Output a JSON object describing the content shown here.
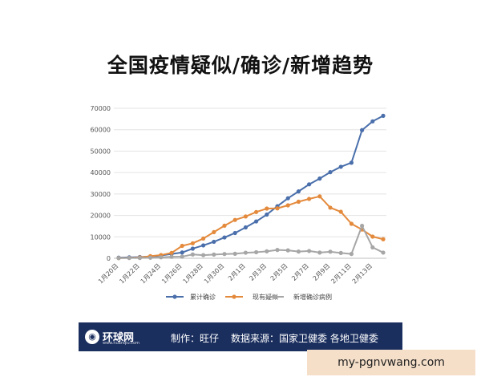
{
  "title": "全国疫情疑似/确诊/新增趋势",
  "footer": {
    "logo_text": "环球网",
    "logo_sub": "www.huanqiu.com",
    "maker": "制作：旺仔",
    "source": "数据来源：国家卫健委 各地卫健委"
  },
  "watermark": "my-pgnvwang.com",
  "chart_data": {
    "type": "line",
    "title": "",
    "xlabel": "",
    "ylabel": "",
    "ylim": [
      0,
      70000
    ],
    "yticks": [
      0,
      10000,
      20000,
      30000,
      40000,
      50000,
      60000,
      70000
    ],
    "grid": true,
    "legend": "bottom",
    "x": [
      "1月20日",
      "1月21日",
      "1月22日",
      "1月23日",
      "1月24日",
      "1月25日",
      "1月26日",
      "1月27日",
      "1月28日",
      "1月29日",
      "1月30日",
      "1月31日",
      "2月1日",
      "2月2日",
      "2月3日",
      "2月4日",
      "2月5日",
      "2月6日",
      "2月7日",
      "2月8日",
      "2月9日",
      "2月10日",
      "2月11日",
      "2月12日",
      "2月13日",
      "2月14日"
    ],
    "x_tick_labels": [
      "1月20日",
      "1月22日",
      "1月24日",
      "1月26日",
      "1月28日",
      "1月30日",
      "2月1日",
      "2月3日",
      "2月5日",
      "2月7日",
      "2月9日",
      "2月11日",
      "2月13日"
    ],
    "series": [
      {
        "name": "累计确诊",
        "color": "#4a6fab",
        "values": [
          300,
          440,
          570,
          830,
          1300,
          2000,
          2700,
          4500,
          6000,
          7700,
          9700,
          11800,
          14400,
          17200,
          20400,
          24300,
          28000,
          31200,
          34500,
          37200,
          40200,
          42700,
          44600,
          59800,
          63900,
          66500
        ]
      },
      {
        "name": "现有疑似",
        "color": "#e48a3c",
        "values": [
          100,
          200,
          390,
          1000,
          1500,
          2500,
          5800,
          7000,
          9200,
          12200,
          15200,
          17900,
          19500,
          21600,
          23200,
          23300,
          24700,
          26400,
          27700,
          28900,
          23600,
          21700,
          16100,
          13400,
          10100,
          8900
        ]
      },
      {
        "name": "新增确诊病例",
        "color": "#a6a6a6",
        "values": [
          80,
          150,
          130,
          260,
          440,
          690,
          770,
          1770,
          1460,
          1740,
          1980,
          2100,
          2590,
          2830,
          3240,
          3890,
          3690,
          3140,
          3400,
          2660,
          3060,
          2480,
          2020,
          15150,
          5090,
          2640
        ]
      }
    ]
  }
}
